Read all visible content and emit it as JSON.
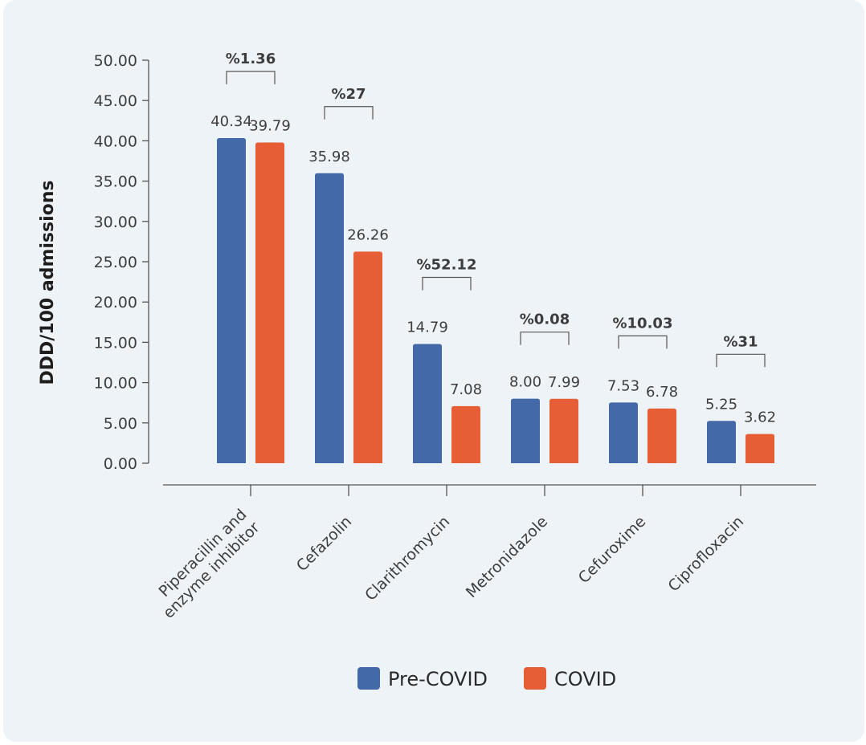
{
  "chart_data": {
    "type": "bar",
    "ylabel": "DDD/100 admissions",
    "ylim": [
      0,
      50
    ],
    "yticks": [
      "0.00",
      "5.00",
      "10.00",
      "15.00",
      "20.00",
      "25.00",
      "30.00",
      "35.00",
      "40.00",
      "45.00",
      "50.00"
    ],
    "categories": [
      [
        "Piperacillin and",
        "enzyme inhibitor"
      ],
      [
        "Cefazolin"
      ],
      [
        "Clarithromycin"
      ],
      [
        "Metronidazole"
      ],
      [
        "Cefuroxime"
      ],
      [
        "Ciprofloxacin"
      ]
    ],
    "series": [
      {
        "name": "Pre-COVID",
        "color": "#4369a8",
        "values": [
          40.34,
          35.98,
          14.79,
          8.0,
          7.53,
          5.25
        ],
        "labels": [
          "40.34",
          "35.98",
          "14.79",
          "8.00",
          "7.53",
          "5.25"
        ]
      },
      {
        "name": "COVID",
        "color": "#e65e35",
        "values": [
          39.79,
          26.26,
          7.08,
          7.99,
          6.78,
          3.62
        ],
        "labels": [
          "39.79",
          "26.26",
          "7.08",
          "7.99",
          "6.78",
          "3.62"
        ]
      }
    ],
    "annotations": [
      "%1.36",
      "%27",
      "%52.12",
      "%0.08",
      "%10.03",
      "%31"
    ],
    "legend": "bottom-center",
    "grid": false
  }
}
